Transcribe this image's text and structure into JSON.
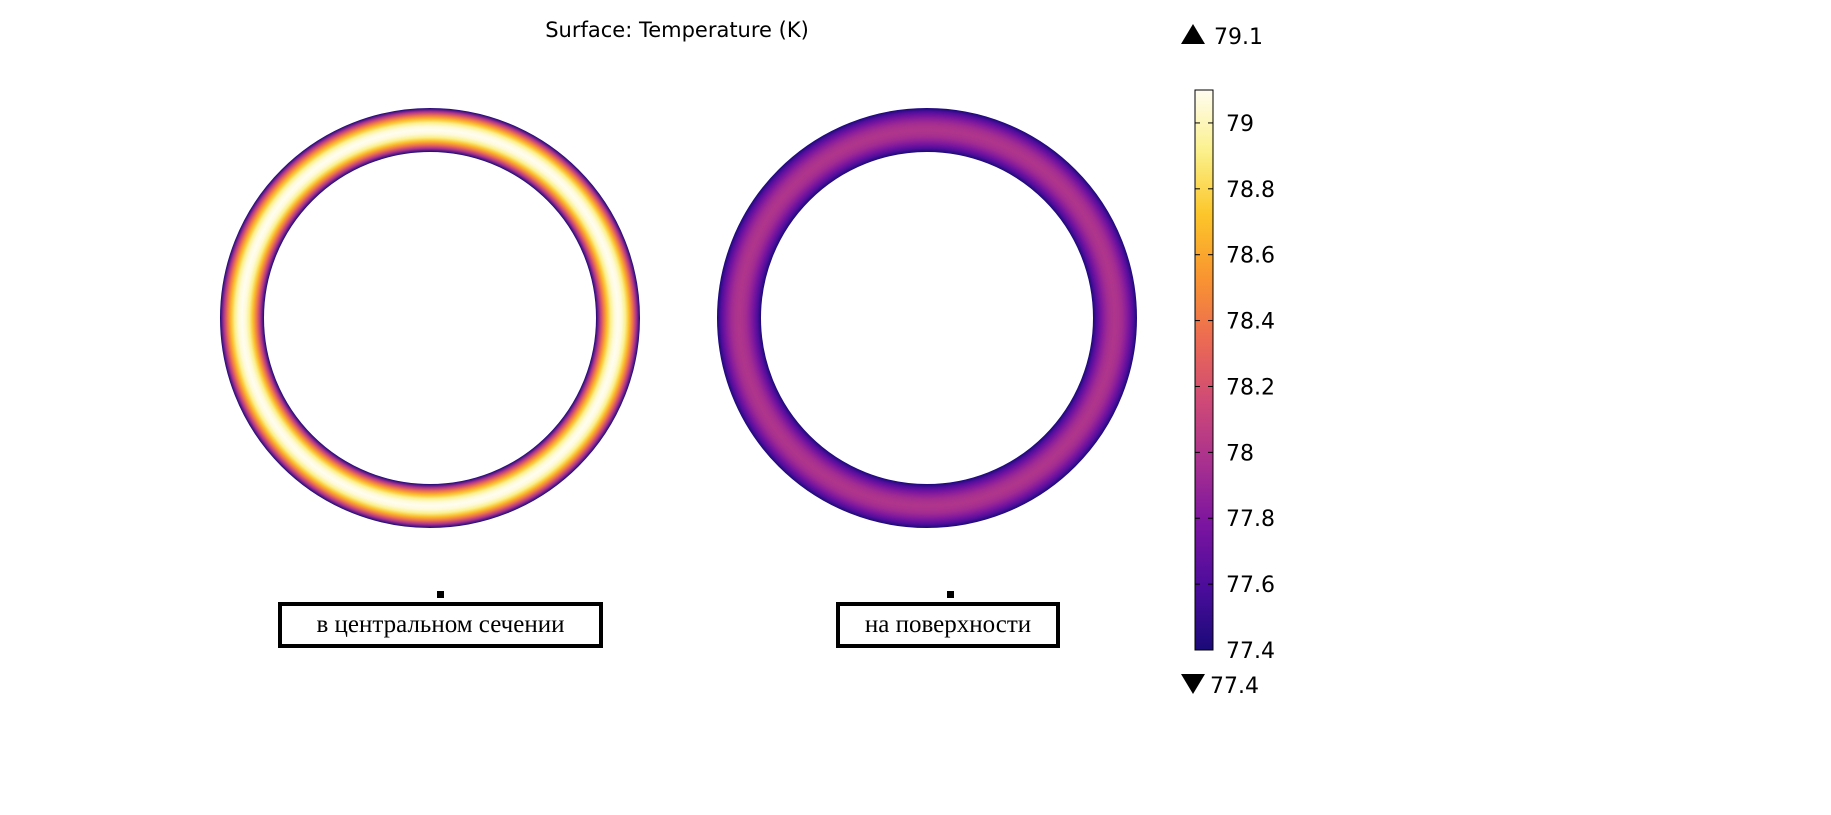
{
  "chart_data": {
    "type": "heatmap",
    "title": "Surface: Temperature (K)",
    "colorbar": {
      "min": 77.4,
      "max": 79.1,
      "max_label": "79.1",
      "min_label": "77.4",
      "ticks": [
        "79",
        "78.8",
        "78.6",
        "78.4",
        "78.2",
        "78",
        "77.8",
        "77.6",
        "77.4"
      ],
      "tick_values": [
        79,
        78.8,
        78.6,
        78.4,
        78.2,
        78,
        77.8,
        77.6,
        77.4
      ],
      "colormap": [
        "#1a0a78",
        "#4b0c9b",
        "#7a14a0",
        "#a8308f",
        "#cf4a76",
        "#ec6b52",
        "#f99530",
        "#fcc62a",
        "#fbf08a",
        "#fffdf0"
      ]
    },
    "plots": [
      {
        "label": "в центральном сечении",
        "edge_value": 77.4,
        "peak_value": 79.1
      },
      {
        "label": "на поверхности",
        "edge_value": 77.4,
        "peak_value": 78.0
      }
    ]
  }
}
